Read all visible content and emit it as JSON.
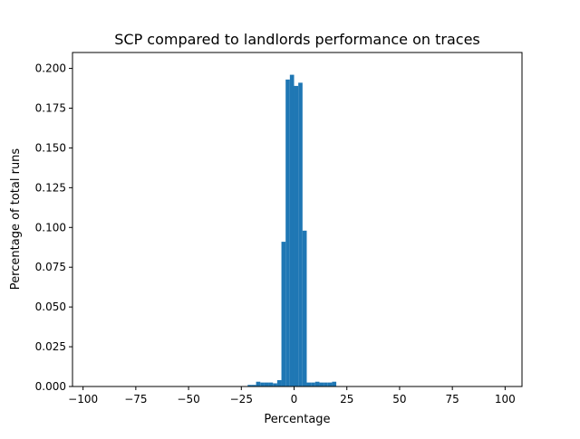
{
  "chart_data": {
    "type": "bar",
    "title": "SCP compared to landlords performance on traces",
    "xlabel": "Percentage",
    "ylabel": "Percentage of total runs",
    "xlim": [
      -105,
      108
    ],
    "ylim": [
      0,
      0.21
    ],
    "xticks": [
      -100,
      -75,
      -50,
      -25,
      0,
      25,
      50,
      75,
      100
    ],
    "xtick_labels": [
      "−100",
      "−75",
      "−50",
      "−25",
      "0",
      "25",
      "50",
      "75",
      "100"
    ],
    "yticks": [
      0.0,
      0.025,
      0.05,
      0.075,
      0.1,
      0.125,
      0.15,
      0.175,
      0.2
    ],
    "ytick_labels": [
      "0.000",
      "0.025",
      "0.050",
      "0.075",
      "0.100",
      "0.125",
      "0.150",
      "0.175",
      "0.200"
    ],
    "grid": false,
    "bar_color": "#1f77b4",
    "bin_width": 2,
    "bins": [
      {
        "x": -22,
        "value": 0.001
      },
      {
        "x": -20,
        "value": 0.001
      },
      {
        "x": -18,
        "value": 0.003
      },
      {
        "x": -16,
        "value": 0.0025
      },
      {
        "x": -14,
        "value": 0.0025
      },
      {
        "x": -12,
        "value": 0.0025
      },
      {
        "x": -10,
        "value": 0.002
      },
      {
        "x": -8,
        "value": 0.004
      },
      {
        "x": -6,
        "value": 0.091
      },
      {
        "x": -4,
        "value": 0.193
      },
      {
        "x": -2,
        "value": 0.196
      },
      {
        "x": 0,
        "value": 0.189
      },
      {
        "x": 2,
        "value": 0.191
      },
      {
        "x": 4,
        "value": 0.098
      },
      {
        "x": 6,
        "value": 0.0025
      },
      {
        "x": 8,
        "value": 0.0025
      },
      {
        "x": 10,
        "value": 0.003
      },
      {
        "x": 12,
        "value": 0.0025
      },
      {
        "x": 14,
        "value": 0.0025
      },
      {
        "x": 16,
        "value": 0.0025
      },
      {
        "x": 18,
        "value": 0.003
      }
    ]
  }
}
